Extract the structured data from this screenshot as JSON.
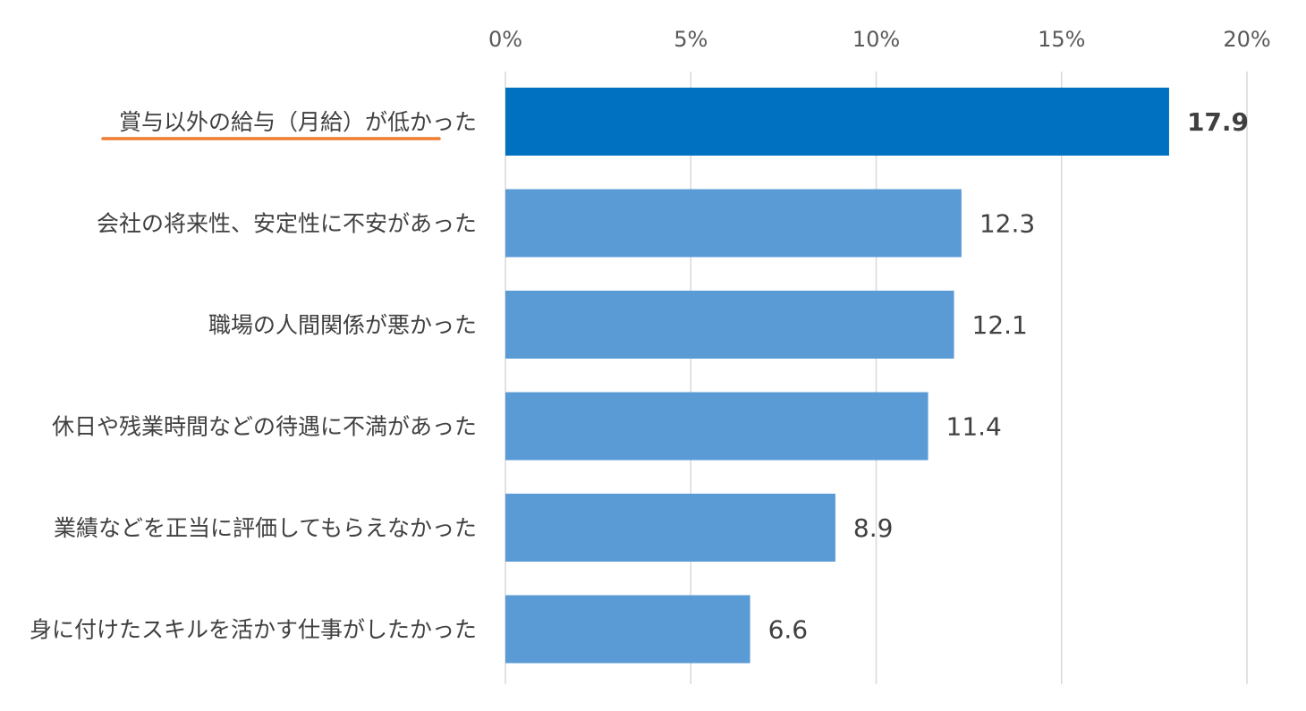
{
  "chart_data": {
    "type": "bar",
    "orientation": "horizontal",
    "categories": [
      "賞与以外の給与（月給）が低かった",
      "会社の将来性、安定性に不安があった",
      "職場の人間関係が悪かった",
      "休日や残業時間などの待遇に不満があった",
      "業績などを正当に評価してもらえなかった",
      "身に付けたスキルを活かす仕事がしたかった"
    ],
    "values": [
      17.9,
      12.3,
      12.1,
      11.4,
      8.9,
      6.6
    ],
    "data_labels": [
      "17.9",
      "12.3",
      "12.1",
      "11.4",
      "8.9",
      "6.6"
    ],
    "xlim": [
      0,
      20
    ],
    "xticks": [
      0,
      5,
      10,
      15,
      20
    ],
    "xtick_labels": [
      "0%",
      "5%",
      "10%",
      "15%",
      "20%"
    ],
    "x_axis_position": "top",
    "grid": true,
    "highlight_index": 0,
    "title": "",
    "xlabel": "",
    "ylabel": "",
    "colors": {
      "bar": "#5b9bd5",
      "highlight_bar": "#0070c0",
      "highlight_underline": "#ed7d31",
      "gridline": "#d9d9d9",
      "tick_text": "#595959",
      "label_text": "#404040"
    }
  }
}
